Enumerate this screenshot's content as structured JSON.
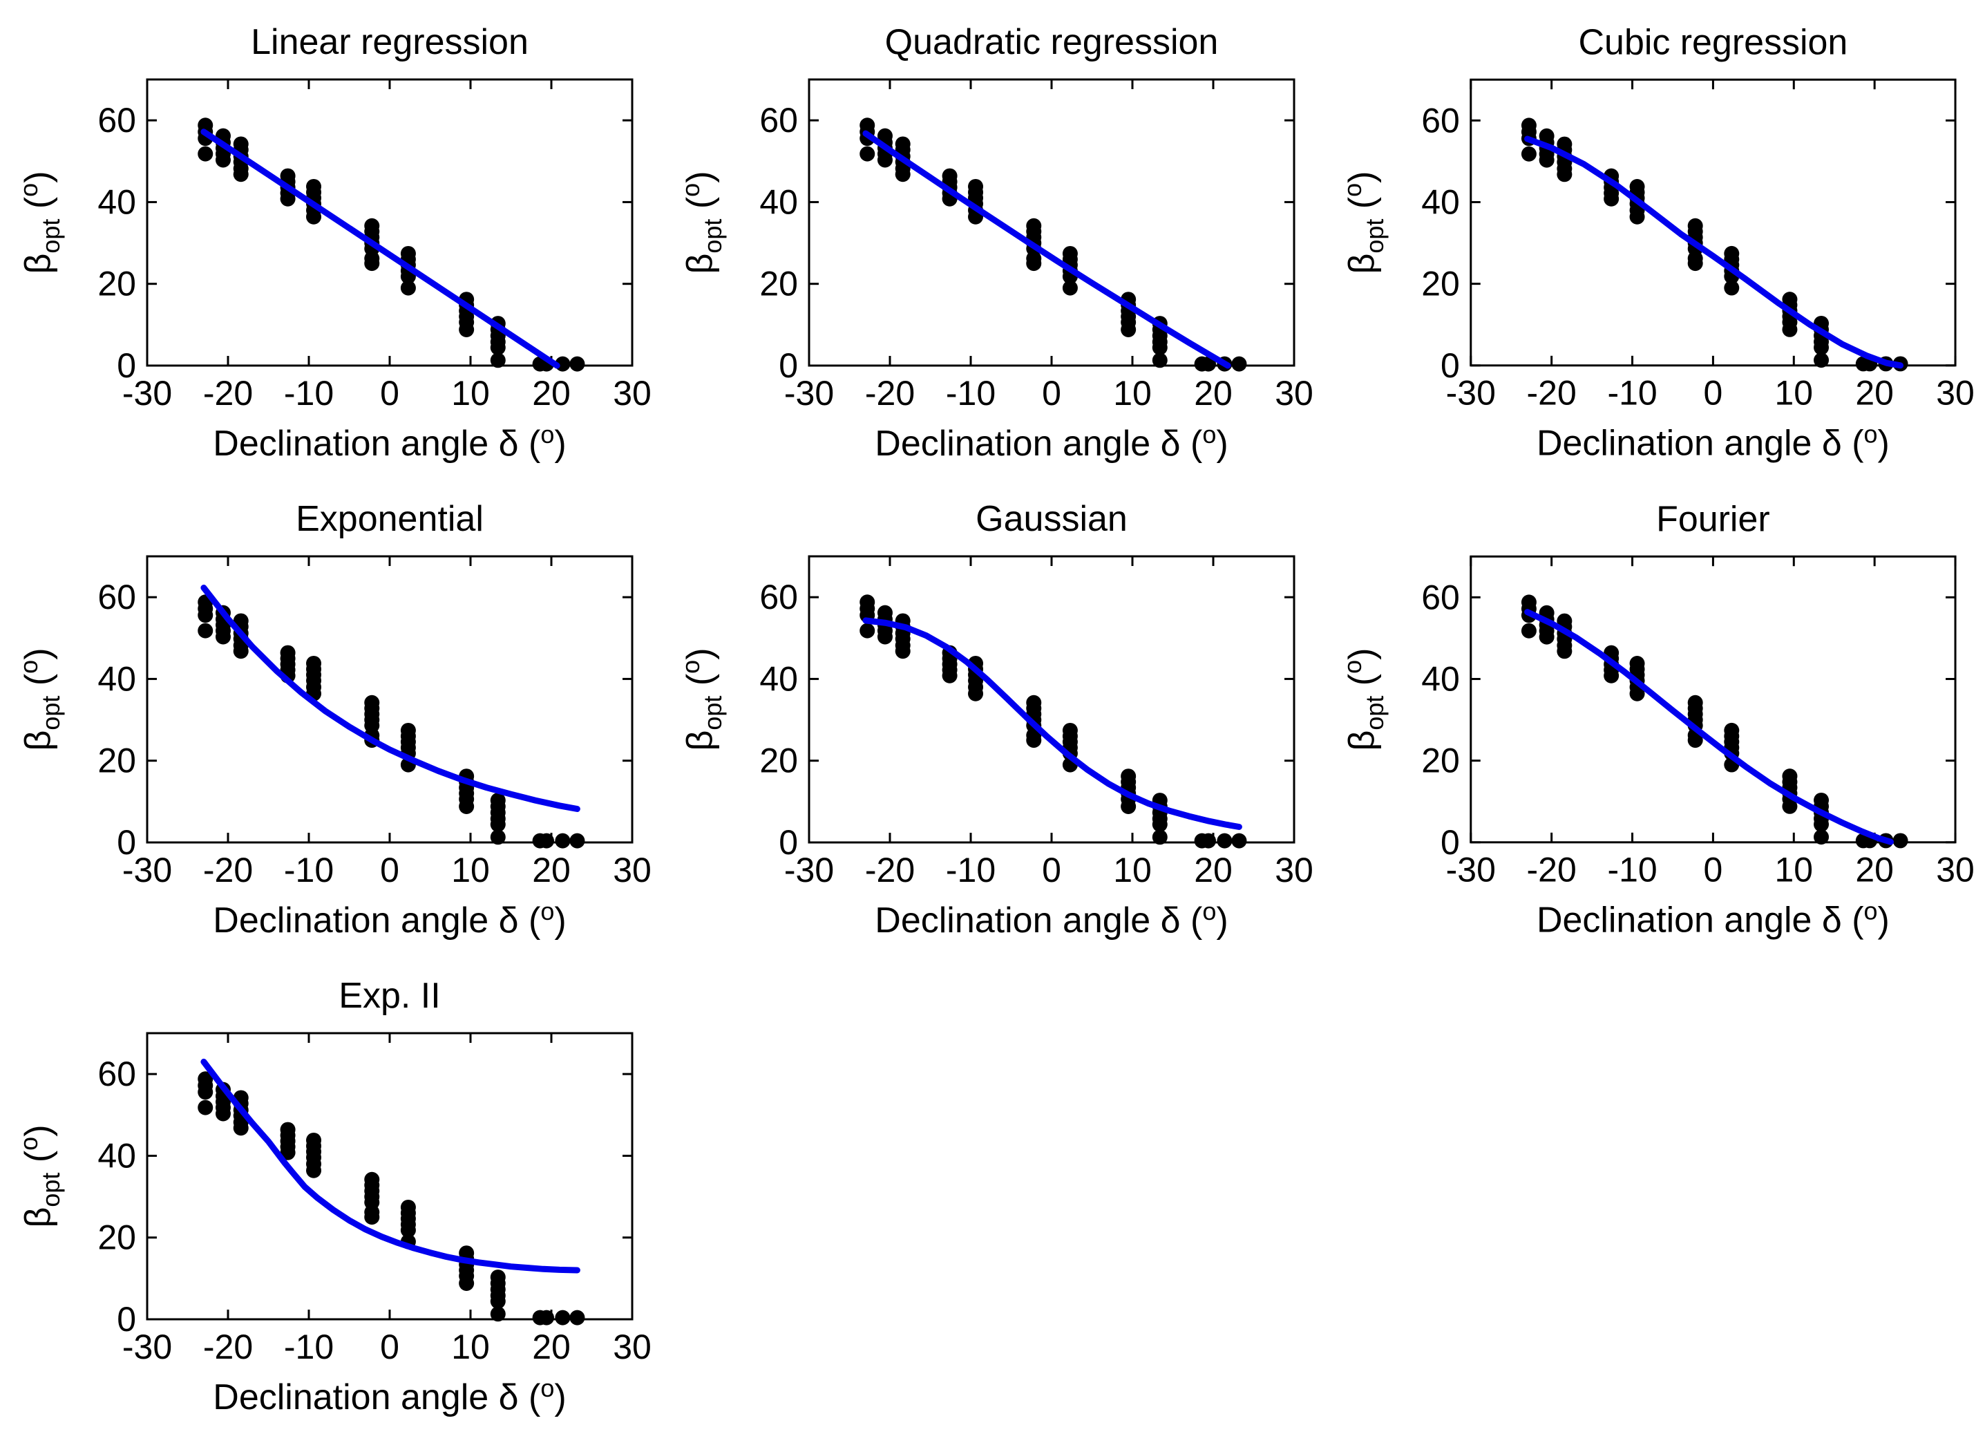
{
  "figure": {
    "background": "#ffffff",
    "curve_color": "#0000ee",
    "marker_color": "#000000",
    "axis_color": "#000000"
  },
  "chart_data": {
    "type": "scatter",
    "layout": "3x3 grid, 7 panels used",
    "grid": "off",
    "legend": "none",
    "xlim": [
      -30,
      30
    ],
    "ylim": [
      0,
      70
    ],
    "xticks": [
      -30,
      -20,
      -10,
      0,
      10,
      20,
      30
    ],
    "yticks": [
      0,
      20,
      40,
      60
    ],
    "xlabel": {
      "text": "Declination angle δ (",
      "sup": "o",
      "close": ")"
    },
    "ylabel": {
      "base": "β",
      "sub": "opt",
      "open": " (",
      "sup": "o",
      "close": ")"
    },
    "scatter_clusters": [
      {
        "x": -22.8,
        "y": [
          58.8,
          57.2,
          55.6,
          51.8
        ]
      },
      {
        "x": -20.6,
        "y": [
          56.2,
          54.6,
          53.2,
          51.8,
          50.3
        ]
      },
      {
        "x": -18.4,
        "y": [
          54.2,
          52.8,
          51.2,
          49.8,
          48.2,
          46.8
        ]
      },
      {
        "x": -12.6,
        "y": [
          46.4,
          45.0,
          43.6,
          42.2,
          40.8
        ]
      },
      {
        "x": -9.4,
        "y": [
          43.8,
          42.4,
          41.0,
          39.6,
          38.0,
          36.4
        ]
      },
      {
        "x": -2.2,
        "y": [
          34.2,
          32.8,
          31.4,
          30.0,
          28.6,
          26.2,
          25.0
        ]
      },
      {
        "x": 2.3,
        "y": [
          27.4,
          26.0,
          24.6,
          23.2,
          21.8,
          19.0
        ]
      },
      {
        "x": 9.5,
        "y": [
          16.2,
          14.8,
          13.4,
          12.0,
          10.6,
          8.8
        ]
      },
      {
        "x": 13.4,
        "y": [
          10.3,
          8.8,
          7.3,
          5.8,
          4.4,
          1.3
        ]
      },
      {
        "x": 18.6,
        "y": [
          0.4
        ]
      },
      {
        "x": 19.4,
        "y": [
          0.4
        ]
      },
      {
        "x": 21.4,
        "y": [
          0.4
        ]
      },
      {
        "x": 23.2,
        "y": [
          0.4
        ]
      }
    ],
    "panels": [
      {
        "title": "Linear regression",
        "fit_curve": [
          [
            -23,
            57.2
          ],
          [
            20.7,
            0
          ]
        ]
      },
      {
        "title": "Quadratic regression",
        "fit_curve": [
          [
            -23,
            56.8
          ],
          [
            -19,
            51.3
          ],
          [
            -15,
            46.0
          ],
          [
            -11,
            40.7
          ],
          [
            -7,
            35.5
          ],
          [
            -3,
            30.3
          ],
          [
            1,
            25.2
          ],
          [
            5,
            20.2
          ],
          [
            9,
            15.3
          ],
          [
            13,
            10.4
          ],
          [
            17,
            5.6
          ],
          [
            21.8,
            0
          ]
        ]
      },
      {
        "title": "Cubic regression",
        "fit_curve": [
          [
            -23,
            55.5
          ],
          [
            -20,
            53.3
          ],
          [
            -16,
            49.3
          ],
          [
            -12,
            44.2
          ],
          [
            -8,
            38.3
          ],
          [
            -4,
            32.2
          ],
          [
            0,
            26.8
          ],
          [
            4,
            21.2
          ],
          [
            8,
            15.4
          ],
          [
            12,
            10.0
          ],
          [
            16,
            5.2
          ],
          [
            19,
            2.4
          ],
          [
            21.5,
            0.6
          ],
          [
            23.2,
            0
          ]
        ]
      },
      {
        "title": "Exponential",
        "fit_curve": [
          [
            -23,
            62.3
          ],
          [
            -20,
            54.7
          ],
          [
            -17,
            47.9
          ],
          [
            -14,
            42.0
          ],
          [
            -11,
            36.8
          ],
          [
            -8,
            32.2
          ],
          [
            -5,
            28.3
          ],
          [
            -2,
            24.8
          ],
          [
            0,
            22.7
          ],
          [
            3,
            20.0
          ],
          [
            6,
            17.5
          ],
          [
            9,
            15.3
          ],
          [
            12,
            13.4
          ],
          [
            15,
            11.8
          ],
          [
            18,
            10.3
          ],
          [
            21,
            9.0
          ],
          [
            23.2,
            8.2
          ]
        ]
      },
      {
        "title": "Gaussian",
        "fit_curve": [
          [
            -23,
            54.3
          ],
          [
            -20.5,
            53.7
          ],
          [
            -18,
            52.6
          ],
          [
            -15.5,
            50.6
          ],
          [
            -13,
            47.8
          ],
          [
            -10.5,
            44.2
          ],
          [
            -8,
            39.9
          ],
          [
            -5.5,
            35.2
          ],
          [
            -3,
            30.4
          ],
          [
            -0.5,
            25.8
          ],
          [
            2,
            21.5
          ],
          [
            4.5,
            17.7
          ],
          [
            7,
            14.4
          ],
          [
            9.5,
            11.7
          ],
          [
            12,
            9.5
          ],
          [
            14.5,
            7.8
          ],
          [
            17,
            6.4
          ],
          [
            19.5,
            5.2
          ],
          [
            21.5,
            4.4
          ],
          [
            23.2,
            3.8
          ]
        ]
      },
      {
        "title": "Fourier",
        "fit_curve": [
          [
            -23,
            56.4
          ],
          [
            -20,
            53.6
          ],
          [
            -17,
            50.2
          ],
          [
            -14,
            46.2
          ],
          [
            -11,
            41.8
          ],
          [
            -8,
            37.1
          ],
          [
            -5,
            32.3
          ],
          [
            -2,
            27.6
          ],
          [
            1,
            23.0
          ],
          [
            4,
            18.6
          ],
          [
            7,
            14.5
          ],
          [
            10,
            10.9
          ],
          [
            13,
            7.7
          ],
          [
            16,
            4.8
          ],
          [
            18.5,
            2.6
          ],
          [
            20.5,
            1.0
          ],
          [
            22,
            0.1
          ]
        ]
      },
      {
        "title": "Exp. II",
        "fit_curve": [
          [
            -23,
            63.0
          ],
          [
            -21,
            57.8
          ],
          [
            -19,
            52.8
          ],
          [
            -17,
            48.0
          ],
          [
            -15,
            43.5
          ],
          [
            -13,
            38.3
          ],
          [
            -12,
            35.9
          ],
          [
            -10.5,
            32.4
          ],
          [
            -9,
            29.8
          ],
          [
            -7,
            26.8
          ],
          [
            -5,
            24.2
          ],
          [
            -3,
            22.0
          ],
          [
            -1,
            20.2
          ],
          [
            1,
            18.7
          ],
          [
            3,
            17.4
          ],
          [
            5,
            16.3
          ],
          [
            7,
            15.3
          ],
          [
            9,
            14.5
          ],
          [
            11,
            13.9
          ],
          [
            13,
            13.4
          ],
          [
            15,
            12.9
          ],
          [
            17,
            12.6
          ],
          [
            19,
            12.3
          ],
          [
            21,
            12.1
          ],
          [
            23.2,
            12.0
          ]
        ]
      }
    ]
  }
}
